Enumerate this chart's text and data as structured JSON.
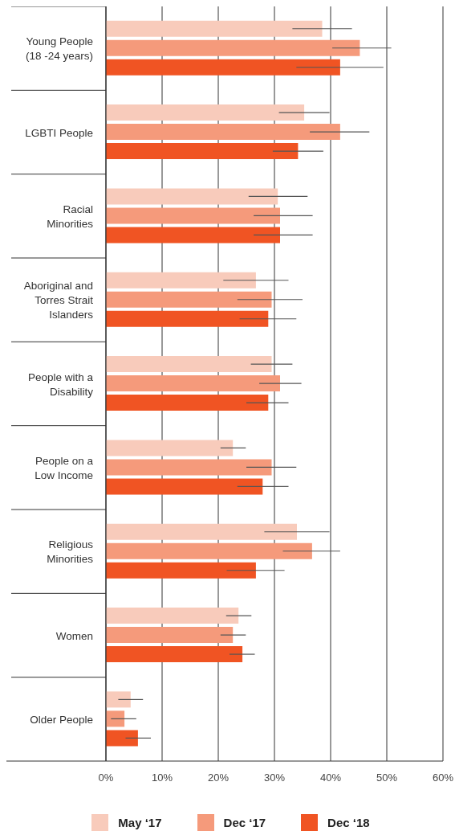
{
  "chart_data": {
    "type": "bar",
    "orientation": "horizontal",
    "categories": [
      "Young People (18 -24 years)",
      "LGBTI People",
      "Racial Minorities",
      "Aboriginal and Torres Strait Islanders",
      "People with a Disability",
      "People on a Low Income",
      "Religious Minorities",
      "Women",
      "Older People"
    ],
    "series": [
      {
        "name": "May ‘17",
        "color": "#f8cbbb",
        "values": [
          38.5,
          35.3,
          30.6,
          26.7,
          29.5,
          22.6,
          34.0,
          23.6,
          4.4
        ],
        "errors": [
          [
            33.2,
            43.8
          ],
          [
            30.8,
            39.8
          ],
          [
            25.4,
            35.9
          ],
          [
            20.9,
            32.5
          ],
          [
            25.8,
            33.2
          ],
          [
            20.4,
            24.9
          ],
          [
            28.2,
            39.8
          ],
          [
            21.4,
            25.9
          ],
          [
            2.2,
            6.6
          ]
        ]
      },
      {
        "name": "Dec ‘17",
        "color": "#f59a7b",
        "values": [
          45.2,
          41.7,
          31.0,
          29.5,
          31.0,
          29.5,
          36.7,
          22.6,
          3.3
        ],
        "errors": [
          [
            40.3,
            50.8
          ],
          [
            36.3,
            46.9
          ],
          [
            26.3,
            36.8
          ],
          [
            23.4,
            35.0
          ],
          [
            27.3,
            34.8
          ],
          [
            25.0,
            33.9
          ],
          [
            31.5,
            41.7
          ],
          [
            20.4,
            24.9
          ],
          [
            0.9,
            5.4
          ]
        ]
      },
      {
        "name": "Dec ‘18",
        "color": "#f05423",
        "values": [
          41.7,
          34.2,
          31.0,
          28.9,
          28.9,
          27.9,
          26.7,
          24.3,
          5.7
        ],
        "errors": [
          [
            33.9,
            49.4
          ],
          [
            29.7,
            38.7
          ],
          [
            26.3,
            36.8
          ],
          [
            23.8,
            33.9
          ],
          [
            25.0,
            32.5
          ],
          [
            23.4,
            32.5
          ],
          [
            21.5,
            31.8
          ],
          [
            22.0,
            26.5
          ],
          [
            3.5,
            8.0
          ]
        ]
      }
    ],
    "xlim": [
      0,
      60
    ],
    "xticks": [
      {
        "value": 0,
        "label": "0%"
      },
      {
        "value": 10,
        "label": "10%"
      },
      {
        "value": 20,
        "label": "20%"
      },
      {
        "value": 30,
        "label": "30%"
      },
      {
        "value": 40,
        "label": "40%"
      },
      {
        "value": 50,
        "label": "50%"
      },
      {
        "value": 60,
        "label": "60%"
      }
    ],
    "grid": "x",
    "legend": "bottom"
  }
}
